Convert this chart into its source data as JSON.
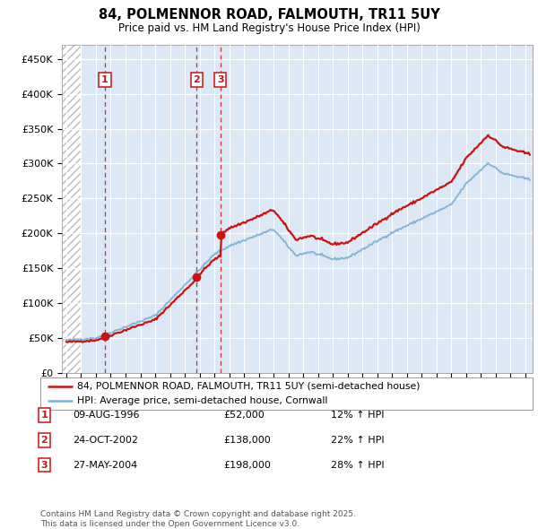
{
  "title": "84, POLMENNOR ROAD, FALMOUTH, TR11 5UY",
  "subtitle": "Price paid vs. HM Land Registry's House Price Index (HPI)",
  "legend_line1": "84, POLMENNOR ROAD, FALMOUTH, TR11 5UY (semi-detached house)",
  "legend_line2": "HPI: Average price, semi-detached house, Cornwall",
  "sale_dates_float": [
    1996.6083,
    2002.8139,
    2004.4083
  ],
  "sale_prices": [
    52000,
    138000,
    198000
  ],
  "sale_labels": [
    "1",
    "2",
    "3"
  ],
  "sale_label_dates": [
    "09-AUG-1996",
    "24-OCT-2002",
    "27-MAY-2004"
  ],
  "sale_label_prices": [
    "£52,000",
    "£138,000",
    "£198,000"
  ],
  "sale_label_hpi": [
    "12% ↑ HPI",
    "22% ↑ HPI",
    "28% ↑ HPI"
  ],
  "hpi_color": "#7ab0d4",
  "price_color": "#cc1111",
  "vline_color": "#cc1111",
  "background_color": "#dce8f5",
  "grid_color": "#ffffff",
  "y_ticks": [
    0,
    50000,
    100000,
    150000,
    200000,
    250000,
    300000,
    350000,
    400000,
    450000
  ],
  "y_tick_labels": [
    "£0",
    "£50K",
    "£100K",
    "£150K",
    "£200K",
    "£250K",
    "£300K",
    "£350K",
    "£400K",
    "£450K"
  ],
  "xlim_start": 1993.7,
  "xlim_end": 2025.5,
  "ylim_min": 0,
  "ylim_max": 470000,
  "footnote": "Contains HM Land Registry data © Crown copyright and database right 2025.\nThis data is licensed under the Open Government Licence v3.0."
}
